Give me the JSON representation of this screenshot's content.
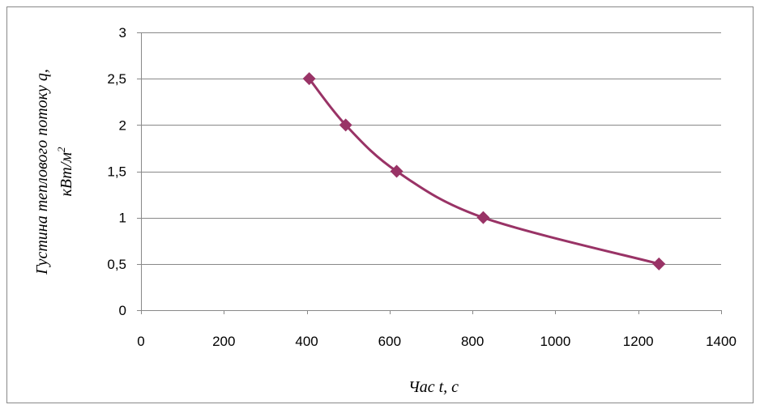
{
  "chart_data": {
    "type": "line",
    "title": "",
    "xlabel": "Час t, с",
    "ylabel_line1": "Густина теплового потоку q,",
    "ylabel_line2_main": "кВт/м",
    "ylabel_line2_sup": "2",
    "xlim": [
      0,
      1400
    ],
    "ylim": [
      0,
      3
    ],
    "x_ticks": [
      0,
      200,
      400,
      600,
      800,
      1000,
      1200,
      1400
    ],
    "y_ticks": [
      0,
      0.5,
      1,
      1.5,
      2,
      2.5,
      3
    ],
    "x_tick_labels": [
      "0",
      "200",
      "400",
      "600",
      "800",
      "1000",
      "1200",
      "1400"
    ],
    "y_tick_labels": [
      "0",
      "0,5",
      "1",
      "1,5",
      "2",
      "2,5",
      "3"
    ],
    "grid": "horizontal",
    "legend": "none",
    "series": [
      {
        "color": "#993366",
        "marker": "diamond",
        "smooth": true,
        "points": [
          {
            "x": 406,
            "y": 2.5
          },
          {
            "x": 494,
            "y": 2.0
          },
          {
            "x": 617,
            "y": 1.5
          },
          {
            "x": 826,
            "y": 1.0
          },
          {
            "x": 1250,
            "y": 0.5
          }
        ]
      }
    ]
  }
}
